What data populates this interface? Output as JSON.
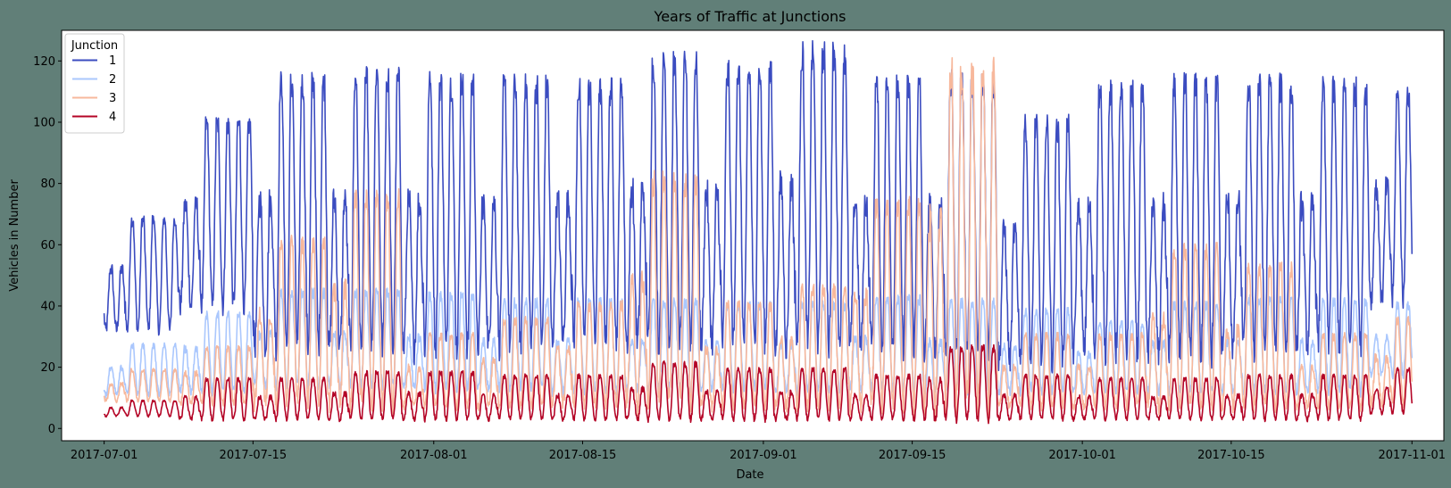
{
  "chart_data": {
    "type": "line",
    "title": "Years of Traffic at Junctions",
    "xlabel": "Date",
    "ylabel": "Vehicles in Number",
    "x_start": "2017-07-01",
    "x_end": "2017-11-01",
    "xlim": [
      "2017-06-27",
      "2017-11-04"
    ],
    "ylim": [
      -4,
      130
    ],
    "x_ticks": [
      "2017-07-01",
      "2017-07-15",
      "2017-08-01",
      "2017-08-15",
      "2017-09-01",
      "2017-09-15",
      "2017-10-01",
      "2017-10-15",
      "2017-11-01"
    ],
    "y_ticks": [
      0,
      20,
      40,
      60,
      80,
      100,
      120
    ],
    "grid": false,
    "legend": {
      "title": "Junction",
      "position": "top-left"
    },
    "series": [
      {
        "name": "1",
        "color": "#3b4cc0",
        "weekly_peaks": [
          68,
          99,
          112,
          113,
          112,
          111,
          110,
          118,
          115,
          121,
          111,
          112,
          98,
          109,
          111,
          111,
          110,
          108
        ],
        "daily_min": [
          32,
          40,
          27,
          26,
          26,
          27,
          29,
          28,
          28,
          27,
          27,
          25,
          22,
          25,
          24,
          26,
          27,
          42
        ]
      },
      {
        "name": "2",
        "color": "#aac7fd",
        "weekly_peaks": [
          27,
          37,
          44,
          44,
          43,
          41,
          41,
          41,
          40,
          40,
          42,
          41,
          38,
          34,
          40,
          42,
          41,
          40
        ],
        "daily_min": [
          11,
          12,
          14,
          14,
          13,
          13,
          12,
          13,
          13,
          12,
          13,
          12,
          12,
          12,
          12,
          12,
          12,
          17
        ]
      },
      {
        "name": "3",
        "color": "#f7b89c",
        "weekly_peaks": [
          19,
          26,
          60,
          75,
          30,
          35,
          40,
          80,
          40,
          45,
          72,
          115,
          30,
          30,
          58,
          52,
          30,
          35
        ],
        "daily_min": [
          9,
          8,
          8,
          8,
          7,
          7,
          8,
          8,
          7,
          7,
          7,
          8,
          7,
          7,
          7,
          7,
          7,
          8
        ]
      },
      {
        "name": "4",
        "color": "#b40426",
        "weekly_peaks": [
          9,
          16,
          16,
          18,
          18,
          17,
          17,
          21,
          19,
          19,
          17,
          26,
          17,
          16,
          16,
          17,
          17,
          19
        ],
        "daily_min": [
          4,
          3,
          3,
          3,
          3,
          3,
          3,
          3,
          3,
          3,
          3,
          3,
          3,
          3,
          3,
          3,
          3,
          5
        ]
      }
    ]
  }
}
